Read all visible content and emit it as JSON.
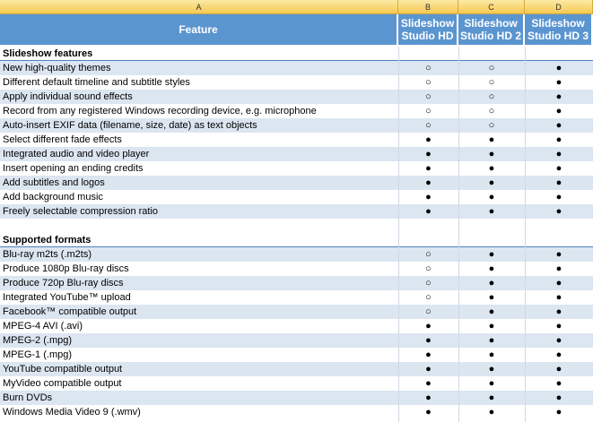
{
  "column_letters": [
    "A",
    "B",
    "C",
    "D"
  ],
  "header": {
    "feature": "Feature",
    "products": [
      "Slideshow Studio HD",
      "Slideshow Studio HD 2",
      "Slideshow Studio HD 3"
    ]
  },
  "sections": [
    {
      "title": "Slideshow features",
      "rows": [
        {
          "feature": "New high-quality themes",
          "cells": [
            "○",
            "○",
            "●"
          ]
        },
        {
          "feature": "Different default timeline and subtitle styles",
          "cells": [
            "○",
            "○",
            "●"
          ]
        },
        {
          "feature": "Apply individual sound effects",
          "cells": [
            "○",
            "○",
            "●"
          ]
        },
        {
          "feature": "Record from any registered Windows recording device, e.g. microphone",
          "cells": [
            "○",
            "○",
            "●"
          ]
        },
        {
          "feature": "Auto-insert EXIF data (filename, size, date) as text objects",
          "cells": [
            "○",
            "○",
            "●"
          ]
        },
        {
          "feature": "Select different fade effects",
          "cells": [
            "●",
            "●",
            "●"
          ]
        },
        {
          "feature": "Integrated audio and video player",
          "cells": [
            "●",
            "●",
            "●"
          ]
        },
        {
          "feature": "Insert opening an ending credits",
          "cells": [
            "●",
            "●",
            "●"
          ]
        },
        {
          "feature": "Add subtitles and logos",
          "cells": [
            "●",
            "●",
            "●"
          ]
        },
        {
          "feature": "Add background music",
          "cells": [
            "●",
            "●",
            "●"
          ]
        },
        {
          "feature": "Freely selectable compression ratio",
          "cells": [
            "●",
            "●",
            "●"
          ]
        }
      ]
    },
    {
      "title": "Supported formats",
      "rows": [
        {
          "feature": "Blu-ray m2ts (.m2ts)",
          "cells": [
            "○",
            "●",
            "●"
          ]
        },
        {
          "feature": "Produce 1080p Blu-ray discs",
          "cells": [
            "○",
            "●",
            "●"
          ]
        },
        {
          "feature": "Produce 720p Blu-ray discs",
          "cells": [
            "○",
            "●",
            "●"
          ]
        },
        {
          "feature": "Integrated YouTube™ upload",
          "cells": [
            "○",
            "●",
            "●"
          ]
        },
        {
          "feature": "Facebook™ compatible output",
          "cells": [
            "○",
            "●",
            "●"
          ]
        },
        {
          "feature": "MPEG-4 AVI (.avi)",
          "cells": [
            "●",
            "●",
            "●"
          ]
        },
        {
          "feature": "MPEG-2 (.mpg)",
          "cells": [
            "●",
            "●",
            "●"
          ]
        },
        {
          "feature": "MPEG-1 (.mpg)",
          "cells": [
            "●",
            "●",
            "●"
          ]
        },
        {
          "feature": "YouTube compatible output",
          "cells": [
            "●",
            "●",
            "●"
          ]
        },
        {
          "feature": "MyVideo compatible output",
          "cells": [
            "●",
            "●",
            "●"
          ]
        },
        {
          "feature": "Burn DVDs",
          "cells": [
            "●",
            "●",
            "●"
          ]
        },
        {
          "feature": "Windows Media Video 9 (.wmv)",
          "cells": [
            "●",
            "●",
            "●"
          ]
        }
      ]
    }
  ]
}
